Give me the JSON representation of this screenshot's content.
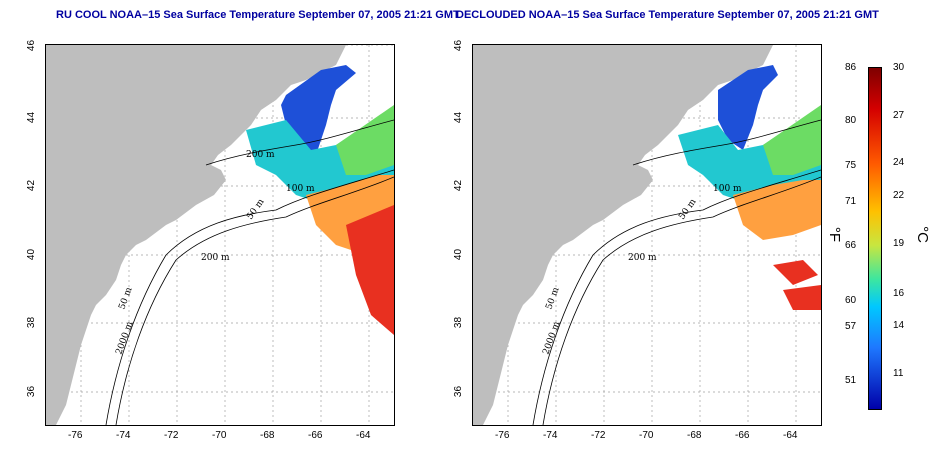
{
  "left_panel": {
    "title": "RU COOL NOAA–15 Sea Surface Temperature September 07, 2005 21:21 GMT",
    "x_ticks": [
      "-76",
      "-74",
      "-72",
      "-70",
      "-68",
      "-66",
      "-64"
    ],
    "y_ticks": [
      "46",
      "44",
      "42",
      "40",
      "38",
      "36"
    ],
    "contour_labels": [
      "200 m",
      "100 m",
      "50 m",
      "200 m",
      "50 m",
      "2000 m"
    ]
  },
  "right_panel": {
    "title": "DECLOUDED NOAA–15 Sea Surface Temperature September 07, 2005 21:21 GMT",
    "x_ticks": [
      "-76",
      "-74",
      "-72",
      "-70",
      "-68",
      "-66",
      "-64"
    ],
    "y_ticks": [
      "46",
      "44",
      "42",
      "40",
      "38",
      "36"
    ],
    "contour_labels": [
      "100 m",
      "50 m",
      "200 m",
      "50 m",
      "2000 m"
    ]
  },
  "colorbar": {
    "fahrenheit_ticks": [
      "86",
      "80",
      "75",
      "71",
      "66",
      "60",
      "57",
      "51"
    ],
    "celsius_ticks": [
      "30",
      "27",
      "24",
      "22",
      "19",
      "16",
      "14",
      "11"
    ],
    "fahrenheit_unit": "°F",
    "celsius_unit": "°C"
  },
  "colors": {
    "land": "#bebebe",
    "title": "#0000a0",
    "gridline": "#a0a0a0"
  }
}
